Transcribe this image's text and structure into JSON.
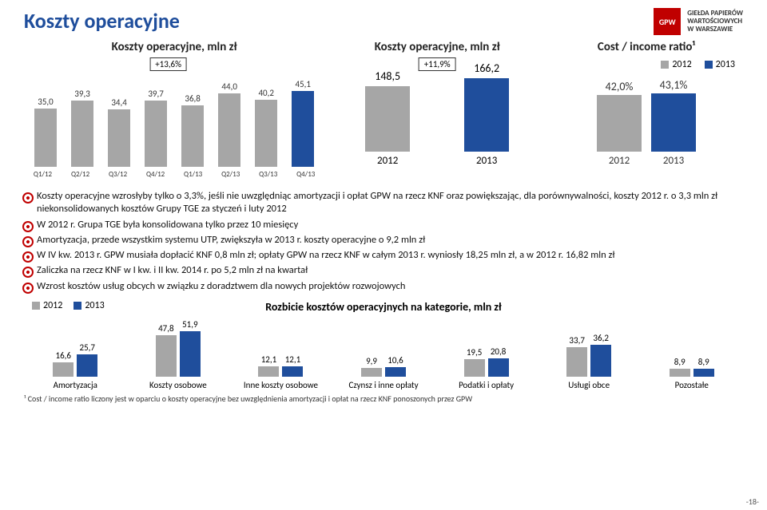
{
  "title": "Koszty operacyjne",
  "logo": {
    "mark": "GPW",
    "text_line1": "GIEŁDA PAPIERÓW",
    "text_line2": "WARTOŚCIOWYCH",
    "text_line3": "W WARSZAWIE"
  },
  "colors": {
    "brand_blue": "#1f4e9c",
    "grey_bar": "#a6a6a6",
    "red": "#c00000",
    "text": "#222222",
    "bg": "#ffffff"
  },
  "chart1": {
    "title": "Koszty operacyjne, mln zł",
    "type": "bar",
    "callout": "+13,6%",
    "categories": [
      "Q1/12",
      "Q2/12",
      "Q3/12",
      "Q4/12",
      "Q1/13",
      "Q2/13",
      "Q3/13",
      "Q4/13"
    ],
    "values": [
      35.0,
      39.3,
      34.4,
      39.7,
      36.8,
      44.0,
      40.2,
      45.1
    ],
    "labels": [
      "35,0",
      "39,3",
      "34,4",
      "39,7",
      "36,8",
      "44,0",
      "40,2",
      "45,1"
    ],
    "color": "#a6a6a6",
    "last_color": "#1f4e9c",
    "ymax": 50,
    "label_fontsize": 11
  },
  "chart2": {
    "title": "Koszty operacyjne, mln zł",
    "type": "bar",
    "callout": "+11,9%",
    "categories": [
      "2012",
      "2013"
    ],
    "values": [
      148.5,
      166.2
    ],
    "labels": [
      "148,5",
      "166,2"
    ],
    "colors": [
      "#a6a6a6",
      "#1f4e9c"
    ],
    "ymax": 180
  },
  "chart3": {
    "title": "Cost / income ratio¹",
    "type": "bar",
    "legend": [
      "2012",
      "2013"
    ],
    "legend_colors": [
      "#a6a6a6",
      "#1f4e9c"
    ],
    "categories": [
      "2012",
      "2013"
    ],
    "values": [
      42.0,
      43.1
    ],
    "labels": [
      "42,0%",
      "43,1%"
    ],
    "colors": [
      "#a6a6a6",
      "#1f4e9c"
    ],
    "ymax": 50
  },
  "bullets": [
    "Koszty operacyjne wzrosłyby tylko o 3,3%, jeśli nie uwzględniąc amortyzacji i opłat GPW na rzecz KNF oraz powiększając, dla porównywalności, koszty 2012 r. o 3,3 mln zł niekonsolidowanych kosztów Grupy TGE za styczeń i luty 2012",
    "W 2012 r. Grupa TGE była konsolidowana tylko przez 10 miesięcy",
    "Amortyzacja, przede wszystkim systemu UTP, zwiększyła w 2013 r. koszty operacyjne o 9,2 mln zł",
    "W IV kw. 2013 r. GPW musiała dopłacić KNF 0,8 mln zł; opłaty GPW na rzecz KNF w całym 2013 r. wyniosły 18,25 mln zł, a w 2012 r. 16,82 mln zł",
    "Zaliczka na rzecz KNF w I kw. i II kw. 2014 r. po 5,2 mln zł na kwartał",
    "Wzrost kosztów usług obcych w związku z doradztwem dla nowych projektów rozwojowych"
  ],
  "breakdown": {
    "title": "Rozbicie kosztów operacyjnych na kategorie, mln zł",
    "legend": [
      "2012",
      "2013"
    ],
    "legend_colors": [
      "#a6a6a6",
      "#1f4e9c"
    ],
    "categories": [
      "Amortyzacja",
      "Koszty osobowe",
      "Inne koszty osobowe",
      "Czynsz i inne opłaty",
      "Podatki i opłaty",
      "Usługi obce",
      "Pozostałe"
    ],
    "series_2012": [
      16.6,
      47.8,
      12.1,
      9.9,
      19.5,
      33.7,
      8.9
    ],
    "series_2013": [
      25.7,
      51.9,
      12.1,
      10.6,
      20.8,
      36.2,
      8.9
    ],
    "labels_2012": [
      "16,6",
      "47,8",
      "12,1",
      "9,9",
      "19,5",
      "33,7",
      "8,9"
    ],
    "labels_2013": [
      "25,7",
      "51,9",
      "12,1",
      "10,6",
      "20,8",
      "36,2",
      "8,9"
    ],
    "ymax": 55,
    "bar_colors": [
      "#a6a6a6",
      "#1f4e9c"
    ]
  },
  "footnote": "¹ Cost / income ratio liczony jest w oparciu o koszty operacyjne bez uwzględnienia amortyzacji i opłat na rzecz KNF ponoszonych przez GPW",
  "pagenum": "-18-"
}
